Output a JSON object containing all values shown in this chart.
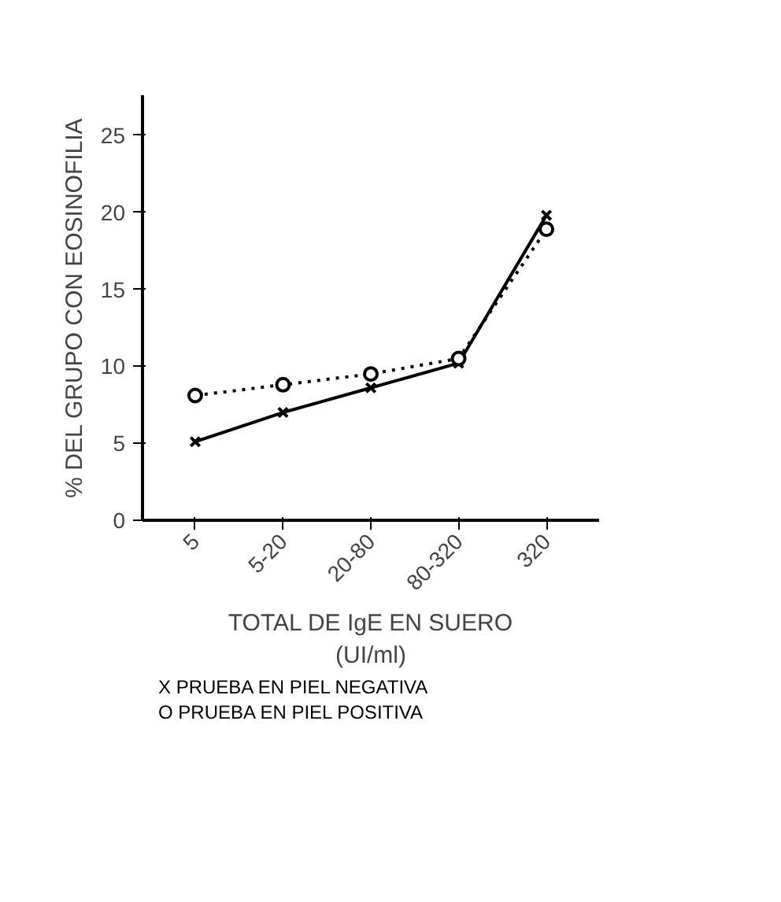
{
  "chart_data": {
    "type": "line",
    "ylabel": "% DEL GRUPO CON EOSINOFILIA",
    "xlabel": "TOTAL DE IgE EN SUERO\n(UI/ml)",
    "categories": [
      "5",
      "5-20",
      "20-80",
      "80-320",
      "320"
    ],
    "series": [
      {
        "color": "#000000",
        "marker": "cross",
        "line_style": "solid",
        "values": [
          5.1,
          7.0,
          8.6,
          10.2,
          19.8
        ]
      },
      {
        "color": "#000000",
        "marker": "circle",
        "line_style": "dotted",
        "values": [
          8.1,
          8.8,
          9.5,
          10.5,
          18.9
        ]
      }
    ],
    "ylim": [
      0,
      27.6
    ],
    "yticks": [
      0,
      5,
      10,
      15,
      20,
      25
    ],
    "annotations": [
      "X PRUEBA EN PIEL NEGATIVA",
      "O PRUEBA EN PIEL POSITIVA"
    ],
    "grid": false
  }
}
